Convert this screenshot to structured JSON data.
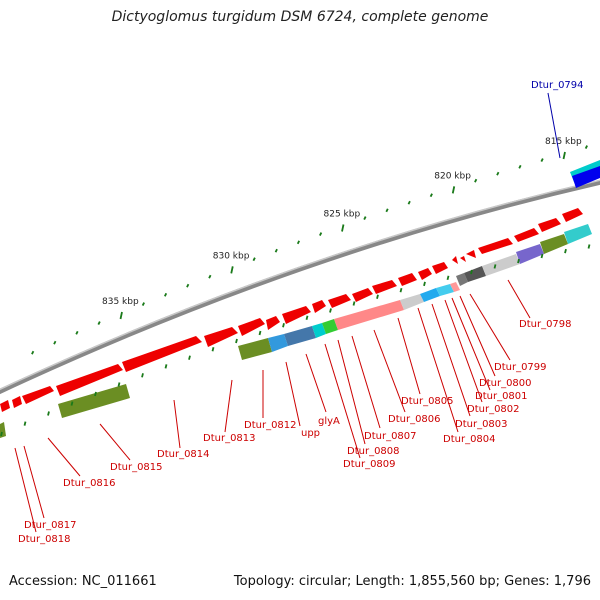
{
  "title": "Dictyoglomus turgidum DSM 6724, complete genome",
  "footer": {
    "accession": "Accession: NC_011661",
    "summary": "Topology: circular; Length: 1,855,560 bp; Genes: 1,796"
  },
  "colors": {
    "backbone": "#808080",
    "tick": "#1a7a1a",
    "label_red": "#cc0000",
    "label_blue": "#0000aa",
    "cds_forward": "#ff0000",
    "cds_reverse_olive": "#6b8e23",
    "cyan": "#00cccc",
    "blue": "#0000ff"
  },
  "scale_ticks": [
    {
      "label": "815 kbp",
      "kbp": 815
    },
    {
      "label": "820 kbp",
      "kbp": 820
    },
    {
      "label": "825 kbp",
      "kbp": 825
    },
    {
      "label": "830 kbp",
      "kbp": 830
    },
    {
      "label": "835 kbp",
      "kbp": 835
    }
  ],
  "gene_labels": [
    {
      "name": "Dtur_0794",
      "color": "blue"
    },
    {
      "name": "Dtur_0798",
      "color": "red"
    },
    {
      "name": "Dtur_0799",
      "color": "red"
    },
    {
      "name": "Dtur_0800",
      "color": "red"
    },
    {
      "name": "Dtur_0801",
      "color": "red"
    },
    {
      "name": "Dtur_0802",
      "color": "red"
    },
    {
      "name": "Dtur_0803",
      "color": "red"
    },
    {
      "name": "Dtur_0804",
      "color": "red"
    },
    {
      "name": "Dtur_0805",
      "color": "red"
    },
    {
      "name": "Dtur_0806",
      "color": "red"
    },
    {
      "name": "Dtur_0807",
      "color": "red"
    },
    {
      "name": "Dtur_0808",
      "color": "red"
    },
    {
      "name": "Dtur_0809",
      "color": "red"
    },
    {
      "name": "glyA",
      "color": "red"
    },
    {
      "name": "upp",
      "color": "red"
    },
    {
      "name": "Dtur_0812",
      "color": "red"
    },
    {
      "name": "Dtur_0813",
      "color": "red"
    },
    {
      "name": "Dtur_0814",
      "color": "red"
    },
    {
      "name": "Dtur_0815",
      "color": "red"
    },
    {
      "name": "Dtur_0816",
      "color": "red"
    },
    {
      "name": "Dtur_0817",
      "color": "red"
    },
    {
      "name": "Dtur_0818",
      "color": "red"
    }
  ]
}
